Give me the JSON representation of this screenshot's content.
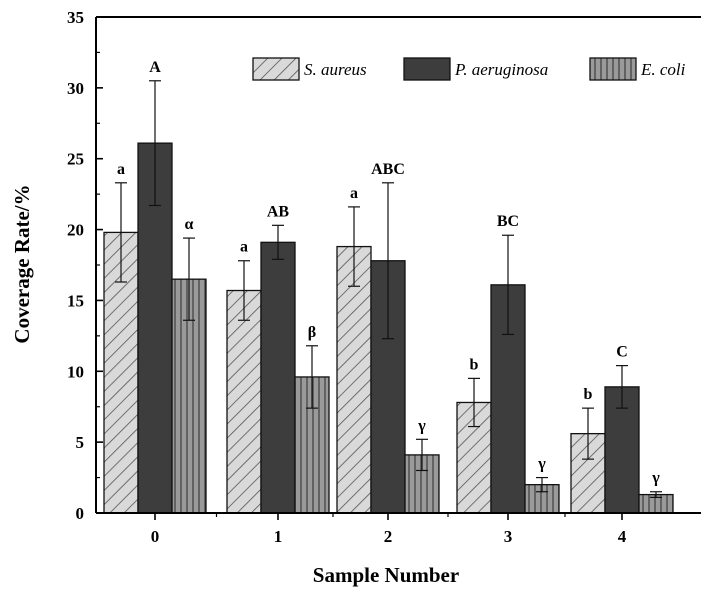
{
  "chart_data": {
    "type": "bar",
    "xlabel": "Sample Number",
    "ylabel": "Coverage Rate/%",
    "categories": [
      "0",
      "1",
      "2",
      "3",
      "4"
    ],
    "ylim": [
      0,
      35
    ],
    "yticks": [
      0,
      5,
      10,
      15,
      20,
      25,
      30,
      35
    ],
    "legend_position": "top-right",
    "series": [
      {
        "name": "S. aureus",
        "pattern": "diagonal-hatch",
        "color": "#d0d0d0",
        "values": [
          19.8,
          15.7,
          18.8,
          7.8,
          5.6
        ],
        "errors": [
          3.5,
          2.1,
          2.8,
          1.7,
          1.8
        ],
        "significance": [
          "a",
          "a",
          "a",
          "b",
          "b"
        ]
      },
      {
        "name": "P. aeruginosa",
        "pattern": "solid",
        "color": "#3d3d3d",
        "values": [
          26.1,
          19.1,
          17.8,
          16.1,
          8.9
        ],
        "errors": [
          4.4,
          1.2,
          5.5,
          3.5,
          1.5
        ],
        "significance": [
          "A",
          "AB",
          "ABC",
          "BC",
          "C"
        ]
      },
      {
        "name": "E. coli",
        "pattern": "vertical-hatch",
        "color": "#8c8c8c",
        "values": [
          16.5,
          9.6,
          4.1,
          2.0,
          1.3
        ],
        "errors": [
          2.9,
          2.2,
          1.1,
          0.5,
          0.2
        ],
        "significance": [
          "α",
          "β",
          "γ",
          "γ",
          "γ"
        ]
      }
    ]
  }
}
